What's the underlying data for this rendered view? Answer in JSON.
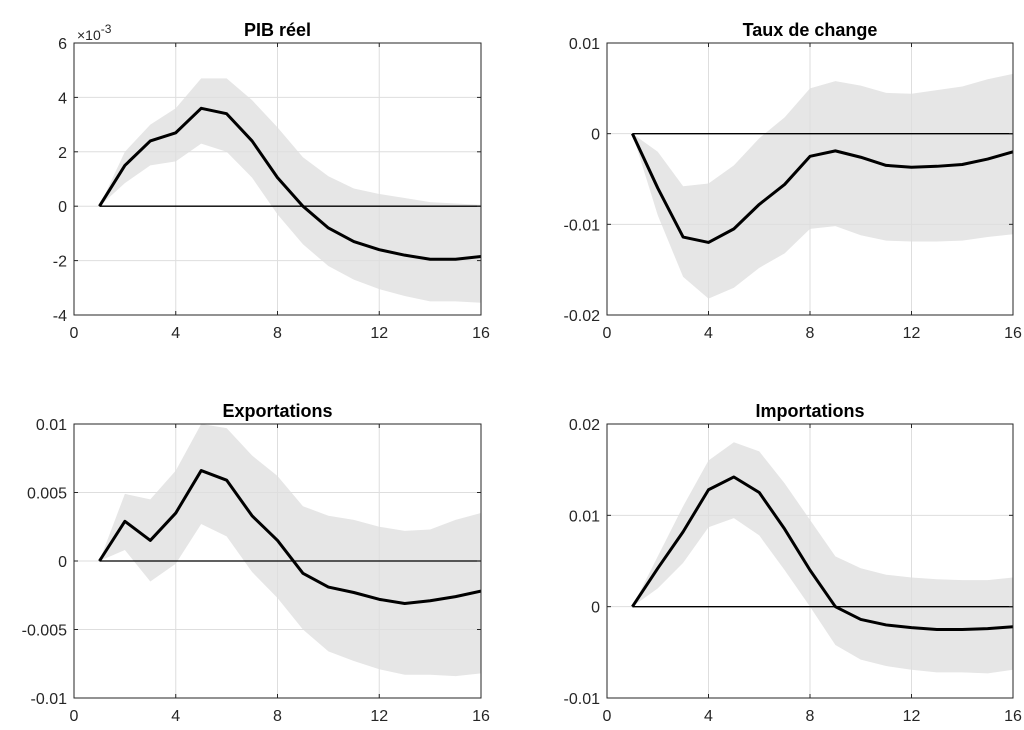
{
  "chart_data": [
    {
      "type": "area",
      "title": "PIB réel",
      "exponent_label": "×10",
      "exponent_power": "-3",
      "xlim": [
        0,
        16
      ],
      "ylim": [
        -4,
        6
      ],
      "xticks": [
        0,
        4,
        8,
        12,
        16
      ],
      "xtick_labels": [
        "0",
        "4",
        "8",
        "12",
        "16"
      ],
      "yticks": [
        -4,
        -2,
        0,
        2,
        4,
        6
      ],
      "ytick_labels": [
        "-4",
        "-2",
        "0",
        "2",
        "4",
        "6"
      ],
      "grid": true,
      "x": [
        1,
        2,
        3,
        4,
        5,
        6,
        7,
        8,
        9,
        10,
        11,
        12,
        13,
        14,
        15,
        16
      ],
      "series": [
        {
          "values": [
            0,
            1.5,
            2.4,
            2.7,
            3.6,
            3.4,
            2.4,
            1.05,
            0,
            -0.8,
            -1.3,
            -1.6,
            -1.8,
            -1.95,
            -1.95,
            -1.85
          ]
        }
      ],
      "band_upper": [
        0,
        2.0,
        3.0,
        3.6,
        4.7,
        4.7,
        3.9,
        2.9,
        1.8,
        1.1,
        0.65,
        0.45,
        0.3,
        0.15,
        0.1,
        0.05
      ],
      "band_lower": [
        0,
        0.85,
        1.5,
        1.65,
        2.3,
        2.0,
        1.05,
        -0.3,
        -1.4,
        -2.2,
        -2.7,
        -3.05,
        -3.3,
        -3.5,
        -3.5,
        -3.55
      ]
    },
    {
      "type": "area",
      "title": "Taux de change",
      "xlim": [
        0,
        16
      ],
      "ylim": [
        -0.02,
        0.01
      ],
      "xticks": [
        0,
        4,
        8,
        12,
        16
      ],
      "xtick_labels": [
        "0",
        "4",
        "8",
        "12",
        "16"
      ],
      "yticks": [
        -0.02,
        -0.01,
        0,
        0.01
      ],
      "ytick_labels": [
        "-0.02",
        "-0.01",
        "0",
        "0.01"
      ],
      "grid": true,
      "x": [
        1,
        2,
        3,
        4,
        5,
        6,
        7,
        8,
        9,
        10,
        11,
        12,
        13,
        14,
        15,
        16
      ],
      "series": [
        {
          "values": [
            0,
            -0.006,
            -0.0114,
            -0.012,
            -0.0105,
            -0.0078,
            -0.0056,
            -0.0025,
            -0.0019,
            -0.0026,
            -0.0035,
            -0.0037,
            -0.0036,
            -0.0034,
            -0.0028,
            -0.002
          ]
        }
      ],
      "band_upper": [
        0,
        -0.002,
        -0.0058,
        -0.0055,
        -0.0035,
        -0.0005,
        0.0018,
        0.005,
        0.0058,
        0.0053,
        0.0045,
        0.0044,
        0.0048,
        0.0052,
        0.006,
        0.0066
      ],
      "band_lower": [
        0,
        -0.009,
        -0.0158,
        -0.0182,
        -0.017,
        -0.0148,
        -0.0132,
        -0.0105,
        -0.0102,
        -0.0112,
        -0.0118,
        -0.0119,
        -0.0119,
        -0.0118,
        -0.0114,
        -0.0111
      ]
    },
    {
      "type": "area",
      "title": "Exportations",
      "xlim": [
        0,
        16
      ],
      "ylim": [
        -0.01,
        0.01
      ],
      "xticks": [
        0,
        4,
        8,
        12,
        16
      ],
      "xtick_labels": [
        "0",
        "4",
        "8",
        "12",
        "16"
      ],
      "yticks": [
        -0.01,
        -0.005,
        0,
        0.005,
        0.01
      ],
      "ytick_labels": [
        "-0.01",
        "-0.005",
        "0",
        "0.005",
        "0.01"
      ],
      "grid": true,
      "x": [
        1,
        2,
        3,
        4,
        5,
        6,
        7,
        8,
        9,
        10,
        11,
        12,
        13,
        14,
        15,
        16
      ],
      "series": [
        {
          "values": [
            0,
            0.0029,
            0.0015,
            0.0035,
            0.0066,
            0.0059,
            0.0033,
            0.0015,
            -0.0009,
            -0.0019,
            -0.0023,
            -0.0028,
            -0.0031,
            -0.0029,
            -0.0026,
            -0.0022
          ]
        }
      ],
      "band_upper": [
        0,
        0.0049,
        0.0045,
        0.0066,
        0.01,
        0.0097,
        0.0077,
        0.0062,
        0.004,
        0.0033,
        0.003,
        0.0025,
        0.0022,
        0.0023,
        0.003,
        0.0035
      ],
      "band_lower": [
        0,
        0.0008,
        -0.0015,
        -0.0002,
        0.0027,
        0.0018,
        -0.0008,
        -0.0027,
        -0.005,
        -0.0066,
        -0.0073,
        -0.0079,
        -0.0083,
        -0.0083,
        -0.0084,
        -0.0082
      ]
    },
    {
      "type": "area",
      "title": "Importations",
      "xlim": [
        0,
        16
      ],
      "ylim": [
        -0.01,
        0.02
      ],
      "xticks": [
        0,
        4,
        8,
        12,
        16
      ],
      "xtick_labels": [
        "0",
        "4",
        "8",
        "12",
        "16"
      ],
      "yticks": [
        -0.01,
        0,
        0.01,
        0.02
      ],
      "ytick_labels": [
        "-0.01",
        "0",
        "0.01",
        "0.02"
      ],
      "grid": true,
      "x": [
        1,
        2,
        3,
        4,
        5,
        6,
        7,
        8,
        9,
        10,
        11,
        12,
        13,
        14,
        15,
        16
      ],
      "series": [
        {
          "values": [
            0,
            0.0042,
            0.0082,
            0.0128,
            0.0142,
            0.0125,
            0.0085,
            0.004,
            0.0,
            -0.0014,
            -0.002,
            -0.0023,
            -0.0025,
            -0.0025,
            -0.0024,
            -0.0022
          ]
        }
      ],
      "band_upper": [
        0,
        0.0055,
        0.011,
        0.016,
        0.018,
        0.017,
        0.0135,
        0.0095,
        0.0055,
        0.0042,
        0.0035,
        0.0032,
        0.003,
        0.0029,
        0.0029,
        0.0032
      ],
      "band_lower": [
        0,
        0.002,
        0.0048,
        0.0087,
        0.0097,
        0.0078,
        0.004,
        0.0,
        -0.0042,
        -0.0058,
        -0.0065,
        -0.0069,
        -0.0072,
        -0.0072,
        -0.0073,
        -0.0069
      ]
    }
  ],
  "colors": {
    "band": "#e6e6e6",
    "line": "#000000",
    "zero_line": "#000000",
    "grid": "#dedede",
    "axis": "#262626"
  }
}
